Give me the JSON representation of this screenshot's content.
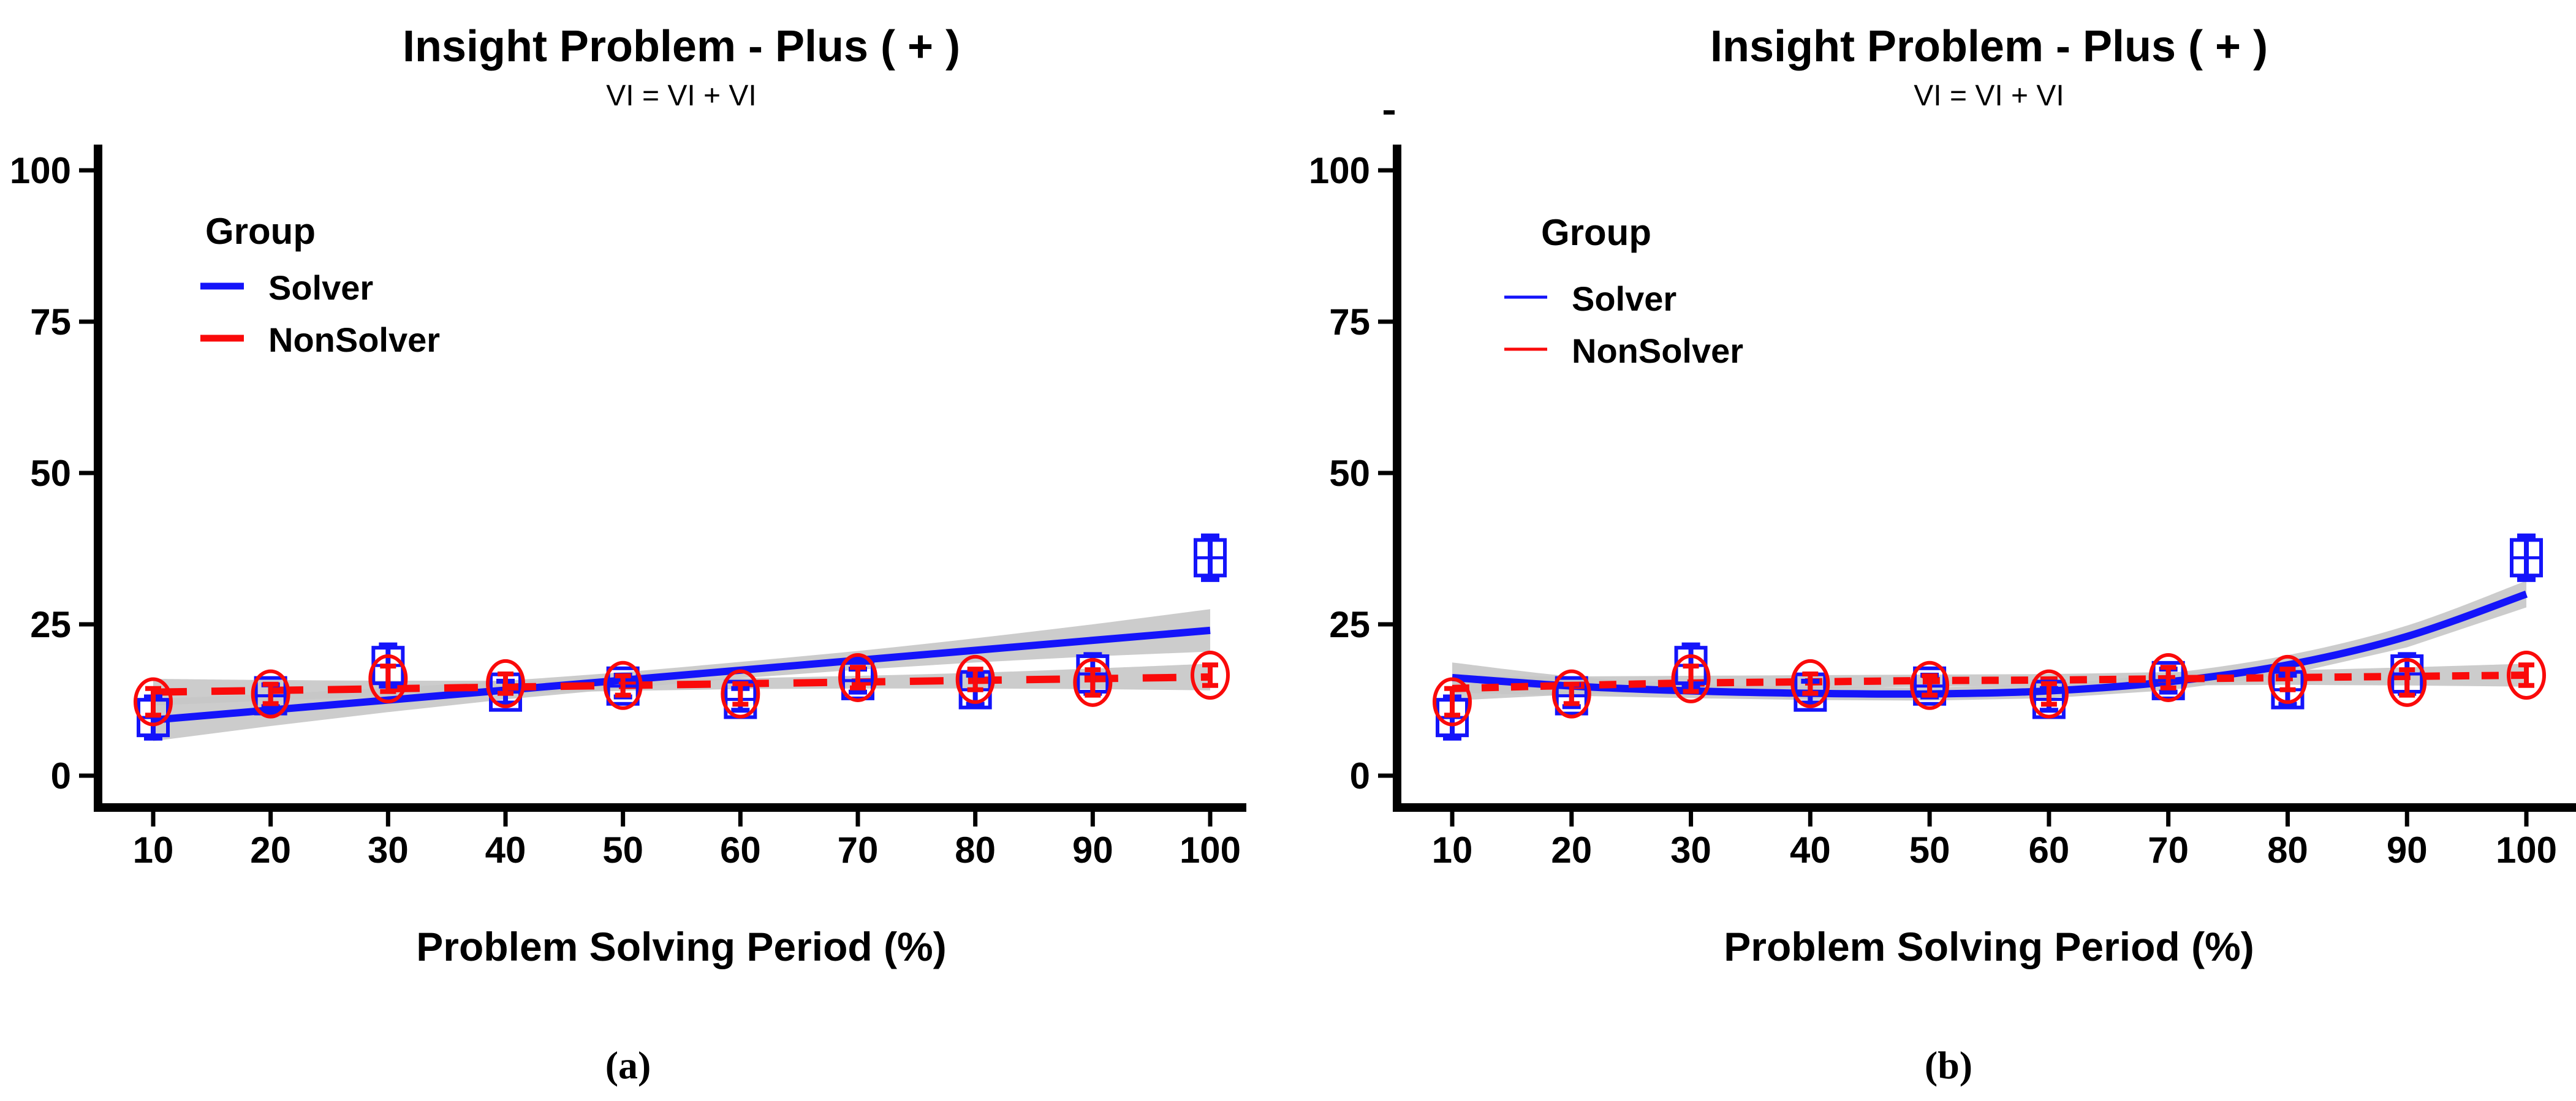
{
  "figure": {
    "background": "#FFFFFF",
    "colors": {
      "solver": "#1414FA",
      "nonsolver": "#FA0A0A",
      "confidence_band": "#C6C6C6",
      "axis": "#000000",
      "text": "#000000"
    }
  },
  "chart_data": [
    {
      "id": "a",
      "type": "scatter",
      "title": "Insight Problem - Plus ( + )",
      "subtitle": "VI = VI + VI",
      "xlabel": "Problem Solving Period (%)",
      "ylabel": "",
      "caption": "(a)",
      "x": [
        10,
        20,
        30,
        40,
        50,
        60,
        70,
        80,
        90,
        100
      ],
      "xlim": [
        10,
        100
      ],
      "ylim": [
        0,
        100
      ],
      "yticks": [
        0,
        25,
        50,
        75,
        100
      ],
      "xticks": [
        10,
        20,
        30,
        40,
        50,
        60,
        70,
        80,
        90,
        100
      ],
      "grid": false,
      "legend": {
        "title": "Group",
        "position": "top-left",
        "key_weight": "thick",
        "entries": [
          {
            "label": "Solver",
            "color": "#1414FA",
            "linestyle": "solid"
          },
          {
            "label": "NonSolver",
            "color": "#FA0A0A",
            "linestyle": "dashed"
          }
        ]
      },
      "series": [
        {
          "name": "Solver",
          "marker": "open-square-crossbar",
          "color": "#1414FA",
          "linestyle": "solid",
          "dash": "solid",
          "values": [
            9.6,
            13.2,
            18.2,
            13.8,
            14.8,
            12.6,
            15.7,
            14.2,
            16.8,
            36.0
          ],
          "errors": [
            3.4,
            1.8,
            3.4,
            1.8,
            1.8,
            1.8,
            1.9,
            2.4,
            3.2,
            3.6
          ],
          "fit": {
            "type": "linear",
            "x": [
              10,
              100
            ],
            "y": [
              9.2,
              24.0
            ]
          },
          "band": {
            "x": [
              10,
              20,
              30,
              40,
              50,
              60,
              70,
              80,
              90,
              100
            ],
            "upper": [
              12.7,
              13.5,
              14.5,
              15.7,
              17.1,
              18.8,
              20.6,
              22.7,
              25.0,
              27.5
            ],
            "lower": [
              5.7,
              8.2,
              10.5,
              12.6,
              14.4,
              16.1,
              17.5,
              18.7,
              19.7,
              20.5
            ]
          }
        },
        {
          "name": "NonSolver",
          "marker": "open-circle-errorbar",
          "color": "#FA0A0A",
          "linestyle": "dashed",
          "dash": "long",
          "values": [
            12.2,
            13.5,
            16.0,
            15.2,
            14.9,
            13.5,
            16.2,
            15.9,
            15.4,
            16.6
          ],
          "errors": [
            2.2,
            1.6,
            2.1,
            1.6,
            1.6,
            1.7,
            1.7,
            1.7,
            2.1,
            1.7
          ],
          "fit": {
            "type": "linear",
            "x": [
              10,
              100
            ],
            "y": [
              13.8,
              16.3
            ]
          },
          "band": {
            "x": [
              10,
              20,
              30,
              40,
              50,
              60,
              70,
              80,
              90,
              100
            ],
            "upper": [
              16.0,
              15.8,
              15.7,
              15.7,
              15.8,
              16.1,
              16.5,
              17.0,
              17.7,
              18.5
            ],
            "lower": [
              11.6,
              12.4,
              13.1,
              13.6,
              14.0,
              14.3,
              14.4,
              14.4,
              14.3,
              14.1
            ]
          }
        }
      ]
    },
    {
      "id": "b",
      "type": "scatter",
      "title": "Insight Problem - Plus ( + )",
      "subtitle": "VI = VI + VI",
      "xlabel": "Problem Solving Period (%)",
      "ylabel": "",
      "caption": "(b)",
      "x": [
        10,
        20,
        30,
        40,
        50,
        60,
        70,
        80,
        90,
        100
      ],
      "xlim": [
        10,
        100
      ],
      "ylim": [
        0,
        100
      ],
      "yticks": [
        0,
        25,
        50,
        75,
        100
      ],
      "xticks": [
        10,
        20,
        30,
        40,
        50,
        60,
        70,
        80,
        90,
        100
      ],
      "grid": false,
      "legend": {
        "title": "Group",
        "position": "top-left",
        "key_weight": "thin",
        "entries": [
          {
            "label": "Solver",
            "color": "#1414FA",
            "linestyle": "solid"
          },
          {
            "label": "NonSolver",
            "color": "#FA0A0A",
            "linestyle": "dashed"
          }
        ]
      },
      "series": [
        {
          "name": "Solver",
          "marker": "open-square-crossbar",
          "color": "#1414FA",
          "linestyle": "solid",
          "dash": "solid",
          "values": [
            9.6,
            13.2,
            18.2,
            13.8,
            14.8,
            12.6,
            15.7,
            14.2,
            16.8,
            36.0
          ],
          "errors": [
            3.4,
            1.8,
            3.4,
            1.8,
            1.8,
            1.8,
            1.9,
            2.4,
            3.2,
            3.6
          ],
          "fit": {
            "type": "smooth",
            "x": [
              10,
              20,
              30,
              40,
              50,
              60,
              70,
              80,
              90,
              100
            ],
            "y": [
              16.2,
              14.8,
              14.0,
              13.6,
              13.5,
              14.0,
              15.5,
              18.3,
              23.0,
              30.0
            ]
          },
          "band": {
            "x": [
              10,
              20,
              30,
              40,
              50,
              60,
              70,
              80,
              90,
              100
            ],
            "upper": [
              18.7,
              16.4,
              15.2,
              14.7,
              14.6,
              15.2,
              16.9,
              19.9,
              24.8,
              32.2
            ],
            "lower": [
              13.7,
              13.2,
              12.8,
              12.5,
              12.4,
              12.8,
              14.1,
              16.7,
              21.2,
              27.8
            ]
          }
        },
        {
          "name": "NonSolver",
          "marker": "open-circle-errorbar",
          "color": "#FA0A0A",
          "linestyle": "dashed",
          "dash": "short",
          "values": [
            12.2,
            13.5,
            16.0,
            15.2,
            14.9,
            13.5,
            16.2,
            15.9,
            15.4,
            16.6
          ],
          "errors": [
            2.2,
            1.6,
            2.1,
            1.6,
            1.6,
            1.7,
            1.7,
            1.7,
            2.1,
            1.7
          ],
          "fit": {
            "type": "smooth",
            "x": [
              10,
              20,
              30,
              40,
              50,
              60,
              70,
              80,
              90,
              100
            ],
            "y": [
              14.4,
              14.9,
              15.3,
              15.5,
              15.7,
              15.8,
              16.0,
              16.2,
              16.4,
              16.6
            ]
          },
          "band": {
            "x": [
              10,
              20,
              30,
              40,
              50,
              60,
              70,
              80,
              90,
              100
            ],
            "upper": [
              16.4,
              16.4,
              16.5,
              16.6,
              16.7,
              16.8,
              17.1,
              17.4,
              17.9,
              18.5
            ],
            "lower": [
              12.4,
              13.4,
              14.1,
              14.4,
              14.7,
              14.8,
              14.9,
              15.0,
              14.9,
              14.7
            ]
          }
        }
      ]
    }
  ]
}
